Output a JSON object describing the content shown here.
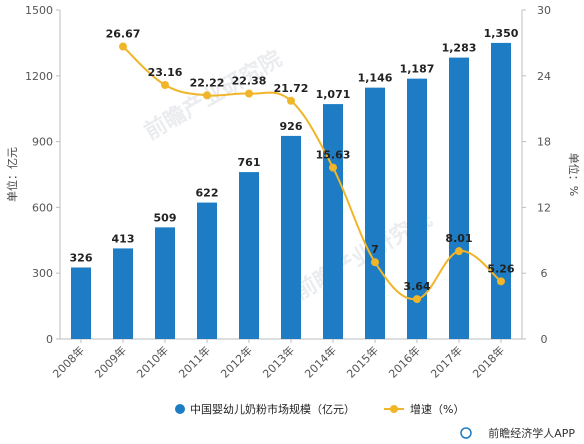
{
  "chart_data": {
    "type": "bar",
    "categories": [
      "2008年",
      "2009年",
      "2010年",
      "2011年",
      "2012年",
      "2013年",
      "2014年",
      "2015年",
      "2016年",
      "2017年",
      "2018年"
    ],
    "series": [
      {
        "name": "中国婴幼儿奶粉市场规模（亿元）",
        "type": "bar",
        "axis": "left",
        "values": [
          326,
          413,
          509,
          622,
          761,
          926,
          1071,
          1146,
          1187,
          1283,
          1350
        ],
        "labels": [
          "326",
          "413",
          "509",
          "622",
          "761",
          "926",
          "1,071",
          "1,146",
          "1,187",
          "1,283",
          "1,350"
        ],
        "color": "#1d7cc3"
      },
      {
        "name": "增速（%）",
        "type": "line",
        "axis": "right",
        "values": [
          null,
          26.67,
          23.16,
          22.22,
          22.38,
          21.72,
          15.63,
          7,
          3.64,
          8.01,
          5.26
        ],
        "labels": [
          "",
          "26.67",
          "23.16",
          "22.22",
          "22.38",
          "21.72",
          "15.63",
          "7",
          "3.64",
          "8.01",
          "5.26"
        ],
        "color": "#f0b528"
      }
    ],
    "ylabel": "单位：亿元",
    "y2label": "单位：%",
    "ylim": [
      0,
      1500
    ],
    "y2lim": [
      0,
      30
    ],
    "yticks": [
      0,
      300,
      600,
      900,
      1200,
      1500
    ],
    "y2ticks": [
      0,
      6,
      12,
      18,
      24,
      30
    ],
    "grid": false,
    "legend": "bottom-center"
  },
  "watermark": [
    "前瞻产业研究院",
    "前瞻产业研究院"
  ],
  "source": "前瞻经济学人APP"
}
